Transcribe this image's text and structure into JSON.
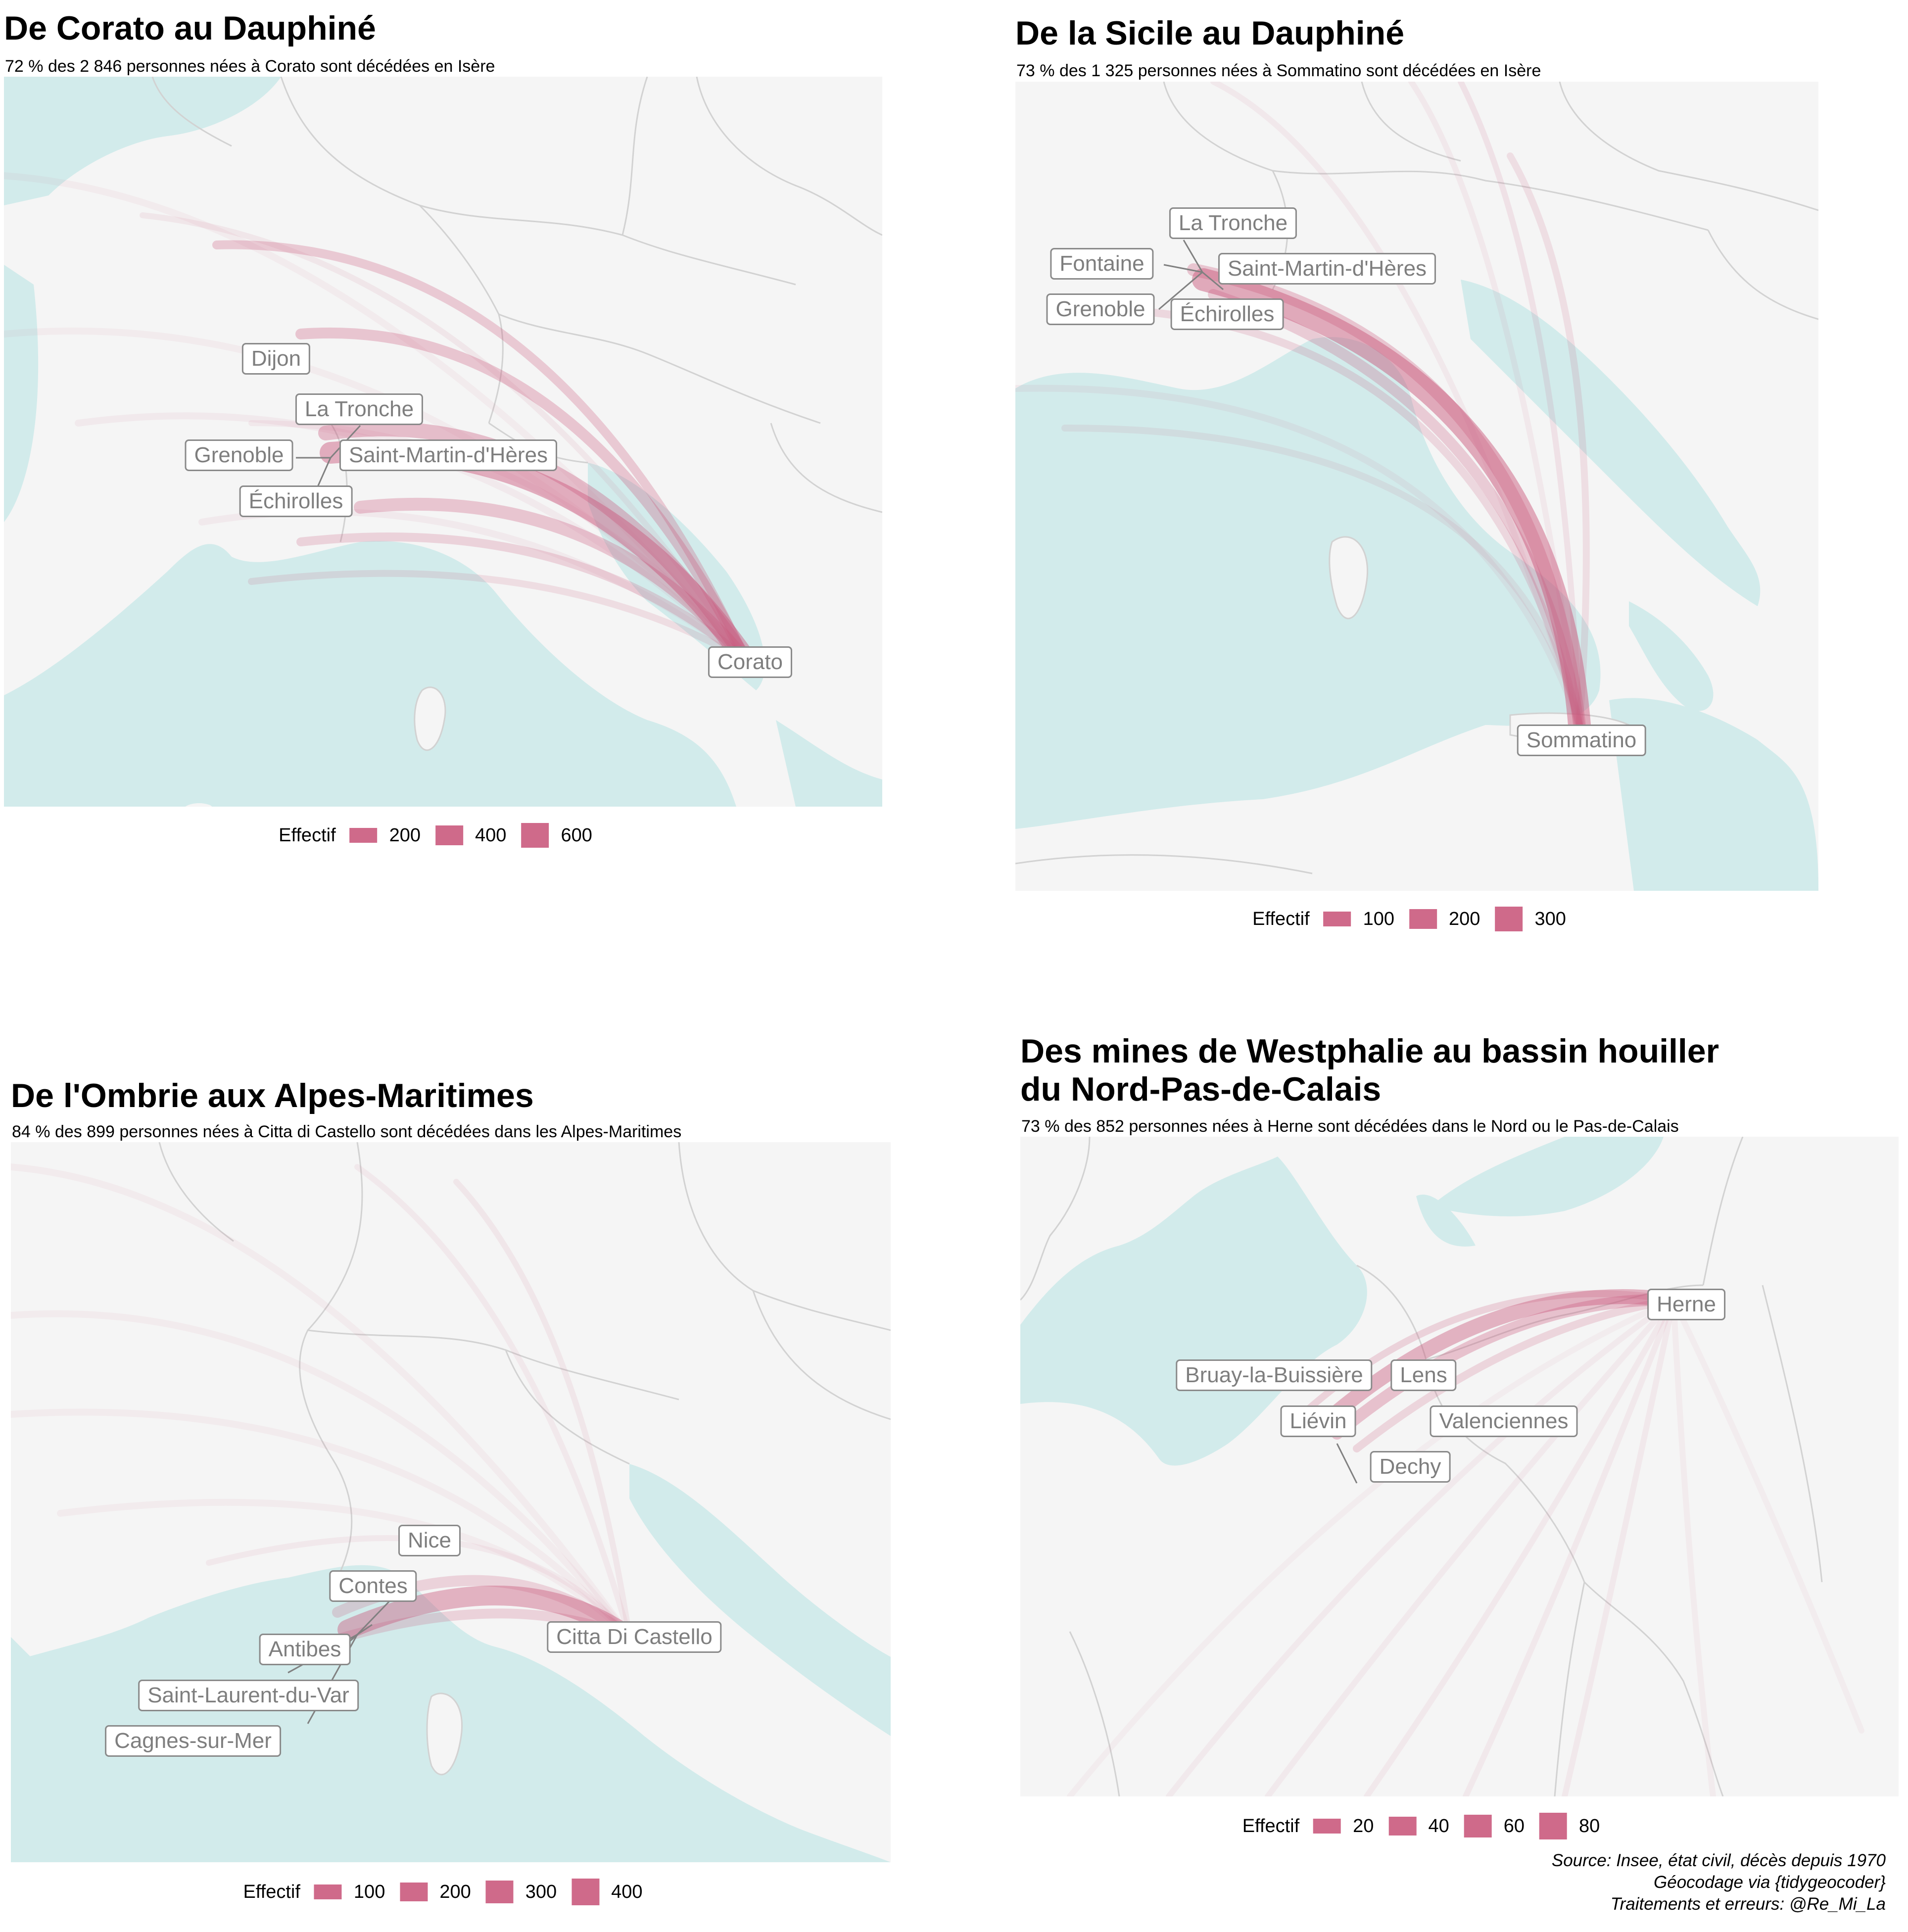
{
  "colors": {
    "sea": "#d2ebeb",
    "land": "#f5f5f5",
    "border": "#d2d2d2",
    "flow": "#c9557a",
    "label_border": "#8a8a8a",
    "label_text": "#7e7e7e"
  },
  "panels": [
    {
      "title": "De Corato au Dauphiné",
      "subtitle": "72 % des 2 846 personnes nées à Corato sont décédées en Isère",
      "origin": "Corato",
      "destinations": [
        "Dijon",
        "La Tronche",
        "Grenoble",
        "Saint-Martin-d'Hères",
        "Échirolles"
      ],
      "legend": {
        "title": "Effectif",
        "values": [
          "200",
          "400",
          "600"
        ]
      }
    },
    {
      "title": "De la Sicile au Dauphiné",
      "subtitle": "73 % des 1 325 personnes nées à Sommatino sont décédées en Isère",
      "origin": "Sommatino",
      "destinations": [
        "La Tronche",
        "Fontaine",
        "Saint-Martin-d'Hères",
        "Grenoble",
        "Échirolles"
      ],
      "legend": {
        "title": "Effectif",
        "values": [
          "100",
          "200",
          "300"
        ]
      }
    },
    {
      "title": "De l'Ombrie aux Alpes-Maritimes",
      "subtitle": "84 % des 899 personnes nées à Citta di Castello sont décédées dans les Alpes-Maritimes",
      "origin": "Citta Di Castello",
      "destinations": [
        "Nice",
        "Contes",
        "Antibes",
        "Saint-Laurent-du-Var",
        "Cagnes-sur-Mer"
      ],
      "legend": {
        "title": "Effectif",
        "values": [
          "100",
          "200",
          "300",
          "400"
        ]
      }
    },
    {
      "title_line1": "Des mines de Westphalie au bassin houiller",
      "title_line2": "du Nord-Pas-de-Calais",
      "subtitle": "73 % des 852 personnes nées à Herne sont décédées dans le Nord ou le Pas-de-Calais",
      "origin": "Herne",
      "destinations": [
        "Bruay-la-Buissière",
        "Lens",
        "Liévin",
        "Valenciennes",
        "Dechy"
      ],
      "legend": {
        "title": "Effectif",
        "values": [
          "20",
          "40",
          "60",
          "80"
        ]
      }
    }
  ],
  "source": {
    "line1": "Source: Insee, état civil, décès depuis 1970",
    "line2": "Géocodage via {tidygeocoder}",
    "line3": "Traitements et erreurs: @Re_Mi_La"
  }
}
